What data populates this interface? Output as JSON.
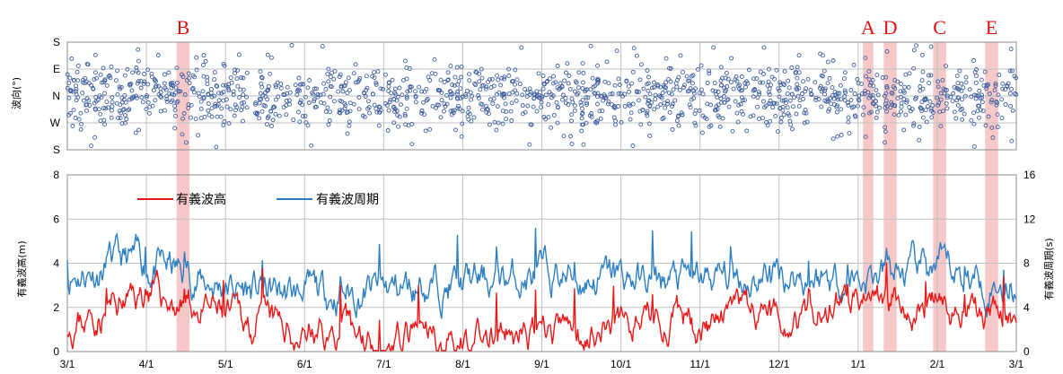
{
  "chart_data": [
    {
      "type": "scatter",
      "ylabel": "波向(°)",
      "y_tick_labels": [
        "S",
        "E",
        "N",
        "W",
        "S"
      ],
      "series_color": "#3f5f9e",
      "note": "dense daily wave-direction scatter, mostly between W and E around N"
    },
    {
      "type": "line",
      "categories": [
        "3/1",
        "4/1",
        "5/1",
        "6/1",
        "7/1",
        "8/1",
        "9/1",
        "10/1",
        "11/1",
        "12/1",
        "1/1",
        "2/1",
        "3/1"
      ],
      "ylabel_left": "有義波高(m)",
      "ylabel_right": "有義波周期(s)",
      "ylim_left": [
        0,
        8
      ],
      "ylim_right": [
        0,
        16
      ],
      "y_ticks_left": [
        "0",
        "2",
        "4",
        "6",
        "8"
      ],
      "y_ticks_right": [
        "0",
        "4",
        "8",
        "12",
        "16"
      ],
      "series": [
        {
          "name": "有義波高",
          "color": "#e81818",
          "axis": "left",
          "values": [
            1.2,
            2.6,
            1.5,
            0.8,
            0.6,
            0.5,
            0.7,
            1.4,
            1.3,
            1.6,
            2.4,
            1.8,
            1.5
          ]
        },
        {
          "name": "有義波周期",
          "color": "#2e7fc1",
          "axis": "right",
          "values": [
            7.2,
            8.0,
            5.8,
            5.0,
            5.6,
            6.2,
            6.8,
            6.6,
            6.4,
            7.0,
            6.6,
            7.2,
            6.0
          ]
        }
      ],
      "events": [
        {
          "label": "B",
          "start": "4/12",
          "end": "4/17"
        },
        {
          "label": "A",
          "start": "1/1",
          "end": "1/5"
        },
        {
          "label": "D",
          "start": "1/9",
          "end": "1/14"
        },
        {
          "label": "C",
          "start": "1/28",
          "end": "2/2"
        },
        {
          "label": "E",
          "start": "2/17",
          "end": "2/22"
        }
      ],
      "legend_position": "top-left"
    }
  ]
}
